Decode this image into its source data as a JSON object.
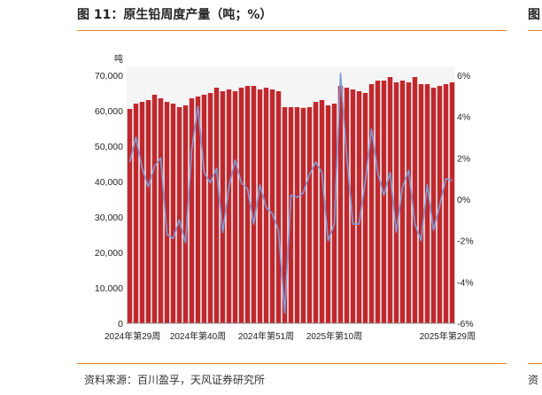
{
  "figure": {
    "title": "图 11：原生铅周度产量（吨；%）",
    "right_title_fragment": "图",
    "source": "资料来源：百川盈孚，天风证券研究所",
    "right_source_fragment": "资"
  },
  "colors": {
    "bar": "#c0282d",
    "line": "#7f9cd9",
    "rule": "#e8822a"
  },
  "chart_data": {
    "type": "bar",
    "unit_left": "吨",
    "y_left": {
      "min": 0,
      "max": 70000,
      "ticks": [
        "0",
        "10,000",
        "20,000",
        "30,000",
        "40,000",
        "50,000",
        "60,000",
        "70,000"
      ]
    },
    "y_right": {
      "min": -6,
      "max": 6,
      "ticks": [
        "-6%",
        "-4%",
        "-2%",
        "0%",
        "2%",
        "4%",
        "6%"
      ]
    },
    "x_tick_labels": [
      {
        "index": 0,
        "label": "2024年第29周"
      },
      {
        "index": 11,
        "label": "2024年第40周"
      },
      {
        "index": 22,
        "label": "2024年第51周"
      },
      {
        "index": 33,
        "label": "2025年第10周"
      },
      {
        "index": 52,
        "label": "2025年第29周"
      }
    ],
    "series": [
      {
        "kind": "bar",
        "axis": "left",
        "values": [
          60500,
          62000,
          62500,
          63000,
          64500,
          63500,
          62500,
          62000,
          61000,
          61500,
          63500,
          64000,
          64500,
          65000,
          66500,
          65500,
          66000,
          65500,
          66500,
          67000,
          67000,
          66000,
          66500,
          66000,
          65500,
          61000,
          61000,
          61000,
          60800,
          61000,
          62500,
          63000,
          61500,
          62000,
          67000,
          66500,
          66000,
          65500,
          65000,
          67500,
          68500,
          68500,
          69500,
          68000,
          68500,
          68000,
          69500,
          67500,
          67500,
          66500,
          67000,
          67500,
          68000
        ]
      },
      {
        "kind": "line",
        "axis": "right",
        "values": [
          1.8,
          3.0,
          1.5,
          0.6,
          1.6,
          2.0,
          -1.7,
          -1.9,
          -1.0,
          -2.1,
          2.4,
          4.5,
          1.3,
          0.8,
          1.5,
          -1.6,
          0.6,
          1.9,
          0.8,
          0.5,
          -1.2,
          0.7,
          -0.4,
          -0.7,
          -1.5,
          -5.5,
          0.2,
          0.1,
          0.3,
          1.2,
          1.8,
          1.3,
          -2.0,
          -1.2,
          6.1,
          2.1,
          -1.2,
          -1.2,
          0.9,
          3.4,
          1.3,
          0.2,
          1.3,
          -1.6,
          0.6,
          1.4,
          -1.2,
          -2.0,
          0.7,
          -1.5,
          -0.3,
          1.0,
          0.9
        ]
      }
    ]
  }
}
